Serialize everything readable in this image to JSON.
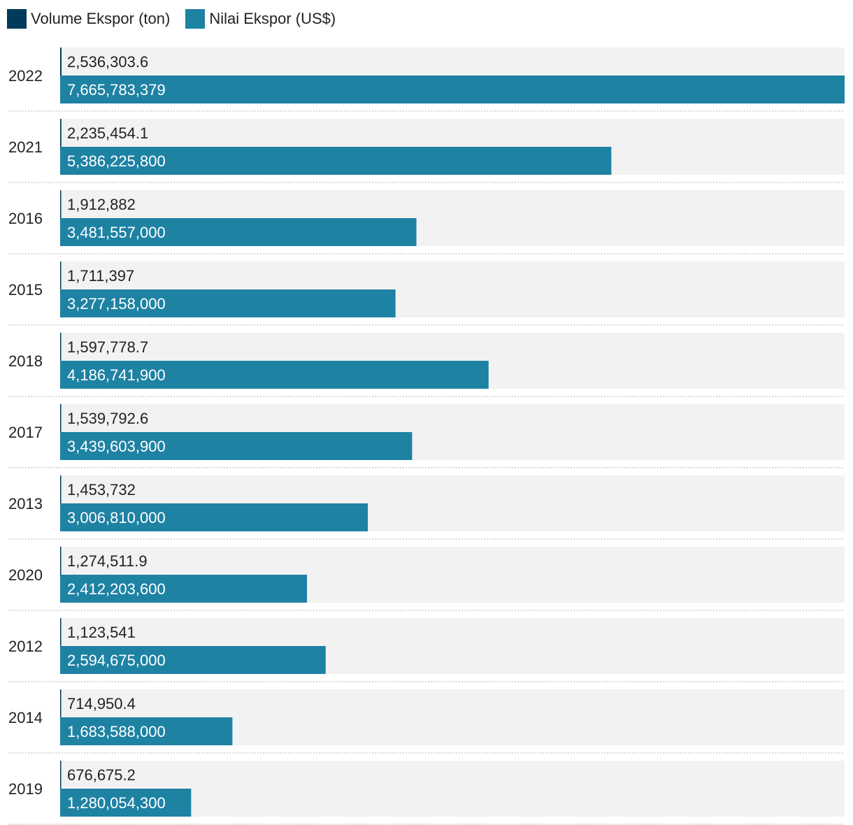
{
  "chart_data": {
    "type": "bar",
    "orientation": "horizontal",
    "legend": [
      {
        "name": "Volume Ekspor (ton)",
        "color": "#003b5c"
      },
      {
        "name": "Nilai Ekspor (US$)",
        "color": "#1e82a3"
      }
    ],
    "categories": [
      "2022",
      "2021",
      "2016",
      "2015",
      "2018",
      "2017",
      "2013",
      "2020",
      "2012",
      "2014",
      "2019"
    ],
    "series": [
      {
        "name": "Volume Ekspor (ton)",
        "color": "#003b5c",
        "values": [
          2536303.6,
          2235454.1,
          1912882,
          1711397,
          1597778.7,
          1539792.6,
          1453732,
          1274511.9,
          1123541,
          714950.4,
          676675.2
        ],
        "labels": [
          "2,536,303.6",
          "2,235,454.1",
          "1,912,882",
          "1,711,397",
          "1,597,778.7",
          "1,539,792.6",
          "1,453,732",
          "1,274,511.9",
          "1,123,541",
          "714,950.4",
          "676,675.2"
        ]
      },
      {
        "name": "Nilai Ekspor (US$)",
        "color": "#1e82a3",
        "values": [
          7665783379,
          5386225800,
          3481557000,
          3277158000,
          4186741900,
          3439603900,
          3006810000,
          2412203600,
          2594675000,
          1683588000,
          1280054300
        ],
        "labels": [
          "7,665,783,379",
          "5,386,225,800",
          "3,481,557,000",
          "3,277,158,000",
          "4,186,741,900",
          "3,439,603,900",
          "3,006,810,000",
          "2,412,203,600",
          "2,594,675,000",
          "1,683,588,000",
          "1,280,054,300"
        ]
      }
    ],
    "xlim": [
      0,
      7665783379
    ],
    "row_background": "#f2f2f2",
    "separator_color": "#cccccc"
  }
}
